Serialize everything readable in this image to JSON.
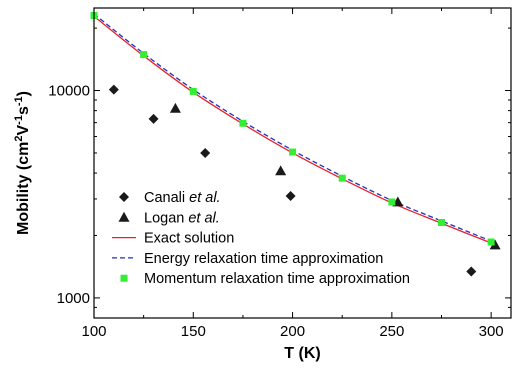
{
  "chart_data": {
    "type": "scatter",
    "xlabel": "T (K)",
    "ylabel": "Mobility (cm²V⁻¹s⁻¹)",
    "ylabel_parts": {
      "prefix": "Mobility (cm",
      "sup1": "2",
      "mid1": "V",
      "sup2": "-1",
      "mid2": "s",
      "sup3": "-1",
      "suffix": ")"
    },
    "xlim": [
      100,
      310
    ],
    "ylim": [
      800,
      25000
    ],
    "yscale": "log",
    "x_ticks": [
      100,
      150,
      200,
      250,
      300
    ],
    "x_tick_labels": [
      "100",
      "150",
      "200",
      "250",
      "300"
    ],
    "y_ticks": [
      1000,
      10000
    ],
    "y_tick_labels": [
      "1000",
      "10000"
    ],
    "legend_position": "bottom-left",
    "series": [
      {
        "name": "Canali et al.",
        "name_plain": "Canali ",
        "name_italic": "et al.",
        "marker": "diamond",
        "color": "#1a1a1a",
        "points": [
          [
            110,
            10100
          ],
          [
            130,
            7300
          ],
          [
            156,
            5000
          ],
          [
            199,
            3100
          ],
          [
            290,
            1340
          ]
        ]
      },
      {
        "name": "Logan et al.",
        "name_plain": "Logan ",
        "name_italic": "et al.",
        "marker": "triangle",
        "color": "#1a1a1a",
        "points": [
          [
            141,
            8200
          ],
          [
            194,
            4100
          ],
          [
            253,
            2900
          ],
          [
            302,
            1800
          ]
        ]
      },
      {
        "name": "Exact solution",
        "name_plain": "Exact solution",
        "name_italic": "",
        "marker": "line",
        "color": "#e8222a",
        "points": [
          [
            100,
            22800
          ],
          [
            125,
            14700
          ],
          [
            150,
            9800
          ],
          [
            175,
            6900
          ],
          [
            200,
            5000
          ],
          [
            225,
            3750
          ],
          [
            250,
            2870
          ],
          [
            275,
            2290
          ],
          [
            300,
            1840
          ]
        ]
      },
      {
        "name": "Energy relaxation time approximation",
        "name_plain": "Energy relaxation time approximation",
        "name_italic": "",
        "marker": "dashed",
        "color": "#1f2fbf",
        "points": [
          [
            100,
            23400
          ],
          [
            125,
            15100
          ],
          [
            150,
            10100
          ],
          [
            175,
            7100
          ],
          [
            200,
            5150
          ],
          [
            225,
            3860
          ],
          [
            250,
            2950
          ],
          [
            275,
            2350
          ],
          [
            300,
            1880
          ]
        ]
      },
      {
        "name": "Momentum relaxation time approximation",
        "name_plain": "Momentum relaxation time approximation",
        "name_italic": "",
        "marker": "square",
        "color": "#33ee33",
        "points": [
          [
            100,
            23000
          ],
          [
            125,
            14900
          ],
          [
            150,
            9900
          ],
          [
            175,
            6950
          ],
          [
            200,
            5050
          ],
          [
            225,
            3780
          ],
          [
            250,
            2900
          ],
          [
            275,
            2310
          ],
          [
            300,
            1860
          ]
        ]
      }
    ]
  }
}
